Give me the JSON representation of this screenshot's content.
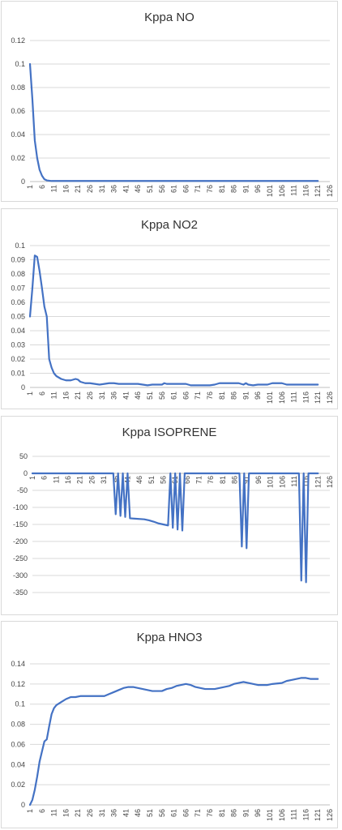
{
  "series_color": "#4472c4",
  "x_tick_labels": [
    "1",
    "6",
    "11",
    "16",
    "21",
    "26",
    "31",
    "36",
    "41",
    "46",
    "51",
    "56",
    "61",
    "66",
    "71",
    "76",
    "81",
    "86",
    "91",
    "96",
    "101",
    "106",
    "111",
    "116",
    "121",
    "126"
  ],
  "chart_data": [
    {
      "type": "line",
      "title": "Kppa NO",
      "xlim": [
        1,
        126
      ],
      "ylim": [
        0,
        0.12
      ],
      "y_ticks": [
        "0.12",
        "0.1",
        "0.08",
        "0.06",
        "0.04",
        "0.02",
        "0"
      ],
      "y_values": [
        0,
        0.02,
        0.04,
        0.06,
        0.08,
        0.1,
        0.12
      ],
      "grid": true,
      "legend": "none",
      "points": [
        [
          1,
          0.1
        ],
        [
          2,
          0.07
        ],
        [
          3,
          0.035
        ],
        [
          4,
          0.02
        ],
        [
          5,
          0.01
        ],
        [
          6,
          0.005
        ],
        [
          7,
          0.002
        ],
        [
          8,
          0.001
        ],
        [
          10,
          0.0005
        ],
        [
          121,
          0.0005
        ]
      ]
    },
    {
      "type": "line",
      "title": "Kppa NO2",
      "xlim": [
        1,
        126
      ],
      "ylim": [
        0,
        0.1
      ],
      "y_ticks": [
        "0.1",
        "0.09",
        "0.08",
        "0.07",
        "0.06",
        "0.05",
        "0.04",
        "0.03",
        "0.02",
        "0.01",
        "0"
      ],
      "y_values": [
        0,
        0.01,
        0.02,
        0.03,
        0.04,
        0.05,
        0.06,
        0.07,
        0.08,
        0.09,
        0.1
      ],
      "grid": true,
      "legend": "none",
      "points": [
        [
          1,
          0.05
        ],
        [
          2,
          0.07
        ],
        [
          3,
          0.093
        ],
        [
          4,
          0.092
        ],
        [
          5,
          0.082
        ],
        [
          6,
          0.07
        ],
        [
          7,
          0.057
        ],
        [
          8,
          0.05
        ],
        [
          9,
          0.02
        ],
        [
          10,
          0.014
        ],
        [
          11,
          0.01
        ],
        [
          12,
          0.008
        ],
        [
          14,
          0.006
        ],
        [
          16,
          0.005
        ],
        [
          18,
          0.005
        ],
        [
          20,
          0.006
        ],
        [
          21,
          0.0055
        ],
        [
          22,
          0.004
        ],
        [
          24,
          0.003
        ],
        [
          26,
          0.003
        ],
        [
          28,
          0.0025
        ],
        [
          30,
          0.002
        ],
        [
          32,
          0.0025
        ],
        [
          34,
          0.003
        ],
        [
          36,
          0.003
        ],
        [
          38,
          0.0025
        ],
        [
          42,
          0.0025
        ],
        [
          46,
          0.0025
        ],
        [
          48,
          0.002
        ],
        [
          50,
          0.0015
        ],
        [
          52,
          0.002
        ],
        [
          54,
          0.002
        ],
        [
          56,
          0.002
        ],
        [
          57,
          0.003
        ],
        [
          58,
          0.0025
        ],
        [
          62,
          0.0025
        ],
        [
          66,
          0.0025
        ],
        [
          68,
          0.0015
        ],
        [
          72,
          0.0015
        ],
        [
          76,
          0.0015
        ],
        [
          78,
          0.002
        ],
        [
          80,
          0.003
        ],
        [
          84,
          0.003
        ],
        [
          88,
          0.003
        ],
        [
          90,
          0.002
        ],
        [
          91,
          0.003
        ],
        [
          92,
          0.002
        ],
        [
          94,
          0.0015
        ],
        [
          96,
          0.002
        ],
        [
          100,
          0.002
        ],
        [
          102,
          0.003
        ],
        [
          106,
          0.003
        ],
        [
          108,
          0.002
        ],
        [
          112,
          0.002
        ],
        [
          116,
          0.002
        ],
        [
          121,
          0.002
        ]
      ]
    },
    {
      "type": "line",
      "title": "Kppa ISOPRENE",
      "xlim": [
        1,
        126
      ],
      "ylim": [
        -400,
        50
      ],
      "y_ticks": [
        "50",
        "0",
        "-50",
        "-100",
        "-150",
        "-200",
        "-250",
        "-300",
        "-350"
      ],
      "y_values": [
        50,
        0,
        -50,
        -100,
        -150,
        -200,
        -250,
        -300,
        -350
      ],
      "grid": true,
      "legend": "none",
      "points": [
        [
          1,
          0
        ],
        [
          35,
          0
        ],
        [
          36,
          -120
        ],
        [
          37,
          0
        ],
        [
          38,
          -125
        ],
        [
          39,
          0
        ],
        [
          40,
          -128
        ],
        [
          41,
          0
        ],
        [
          42,
          -132
        ],
        [
          44,
          -133
        ],
        [
          48,
          -135
        ],
        [
          50,
          -138
        ],
        [
          52,
          -142
        ],
        [
          54,
          -147
        ],
        [
          56,
          -150
        ],
        [
          58,
          -153
        ],
        [
          59,
          0
        ],
        [
          60,
          -160
        ],
        [
          61,
          0
        ],
        [
          62,
          -165
        ],
        [
          63,
          0
        ],
        [
          64,
          -168
        ],
        [
          65,
          0
        ],
        [
          88,
          0
        ],
        [
          89,
          -215
        ],
        [
          90,
          0
        ],
        [
          91,
          -220
        ],
        [
          92,
          0
        ],
        [
          113,
          0
        ],
        [
          114,
          -315
        ],
        [
          115,
          0
        ],
        [
          116,
          -320
        ],
        [
          117,
          0
        ],
        [
          121,
          0
        ]
      ]
    },
    {
      "type": "line",
      "title": "Kppa HNO3",
      "xlim": [
        1,
        126
      ],
      "ylim": [
        0,
        0.14
      ],
      "y_ticks": [
        "0.14",
        "0.12",
        "0.1",
        "0.08",
        "0.06",
        "0.04",
        "0.02",
        "0"
      ],
      "y_values": [
        0,
        0.02,
        0.04,
        0.06,
        0.08,
        0.1,
        0.12,
        0.14
      ],
      "grid": true,
      "legend": "none",
      "points": [
        [
          1,
          0
        ],
        [
          2,
          0.005
        ],
        [
          3,
          0.015
        ],
        [
          4,
          0.028
        ],
        [
          5,
          0.043
        ],
        [
          6,
          0.053
        ],
        [
          7,
          0.063
        ],
        [
          8,
          0.065
        ],
        [
          9,
          0.078
        ],
        [
          10,
          0.09
        ],
        [
          11,
          0.096
        ],
        [
          12,
          0.099
        ],
        [
          14,
          0.102
        ],
        [
          16,
          0.105
        ],
        [
          18,
          0.107
        ],
        [
          20,
          0.107
        ],
        [
          22,
          0.108
        ],
        [
          26,
          0.108
        ],
        [
          30,
          0.108
        ],
        [
          32,
          0.108
        ],
        [
          34,
          0.11
        ],
        [
          36,
          0.112
        ],
        [
          38,
          0.114
        ],
        [
          40,
          0.116
        ],
        [
          42,
          0.117
        ],
        [
          44,
          0.117
        ],
        [
          46,
          0.116
        ],
        [
          48,
          0.115
        ],
        [
          52,
          0.113
        ],
        [
          56,
          0.113
        ],
        [
          58,
          0.115
        ],
        [
          60,
          0.116
        ],
        [
          62,
          0.118
        ],
        [
          64,
          0.119
        ],
        [
          66,
          0.12
        ],
        [
          68,
          0.119
        ],
        [
          70,
          0.117
        ],
        [
          72,
          0.116
        ],
        [
          74,
          0.115
        ],
        [
          78,
          0.115
        ],
        [
          80,
          0.116
        ],
        [
          84,
          0.118
        ],
        [
          86,
          0.12
        ],
        [
          88,
          0.121
        ],
        [
          90,
          0.122
        ],
        [
          92,
          0.121
        ],
        [
          94,
          0.12
        ],
        [
          96,
          0.119
        ],
        [
          100,
          0.119
        ],
        [
          102,
          0.12
        ],
        [
          106,
          0.121
        ],
        [
          108,
          0.123
        ],
        [
          110,
          0.124
        ],
        [
          112,
          0.125
        ],
        [
          114,
          0.126
        ],
        [
          116,
          0.126
        ],
        [
          118,
          0.125
        ],
        [
          121,
          0.125
        ]
      ]
    }
  ]
}
